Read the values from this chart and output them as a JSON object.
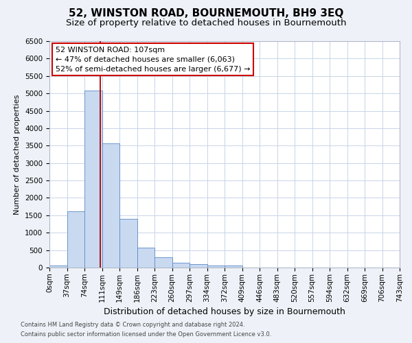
{
  "title_line1": "52, WINSTON ROAD, BOURNEMOUTH, BH9 3EQ",
  "title_line2": "Size of property relative to detached houses in Bournemouth",
  "xlabel": "Distribution of detached houses by size in Bournemouth",
  "ylabel": "Number of detached properties",
  "footnote1": "Contains HM Land Registry data © Crown copyright and database right 2024.",
  "footnote2": "Contains public sector information licensed under the Open Government Licence v3.0.",
  "bin_labels": [
    "0sqm",
    "37sqm",
    "74sqm",
    "111sqm",
    "149sqm",
    "186sqm",
    "223sqm",
    "260sqm",
    "297sqm",
    "334sqm",
    "372sqm",
    "409sqm",
    "446sqm",
    "483sqm",
    "520sqm",
    "557sqm",
    "594sqm",
    "632sqm",
    "669sqm",
    "706sqm",
    "743sqm"
  ],
  "bar_values": [
    60,
    1620,
    5080,
    3570,
    1400,
    580,
    290,
    140,
    100,
    60,
    60,
    0,
    0,
    0,
    0,
    0,
    0,
    0,
    0,
    0
  ],
  "bar_color": "#c9d9f0",
  "bar_edge_color": "#5a8ac6",
  "grid_color": "#c8d4e8",
  "vline_color": "#aa0000",
  "annotation_text": "52 WINSTON ROAD: 107sqm\n← 47% of detached houses are smaller (6,063)\n52% of semi-detached houses are larger (6,677) →",
  "annotation_box_facecolor": "#ffffff",
  "annotation_box_edgecolor": "#cc0000",
  "plot_bg": "#ffffff",
  "fig_bg": "#eef2f8",
  "ylim_max": 6500,
  "yticks": [
    0,
    500,
    1000,
    1500,
    2000,
    2500,
    3000,
    3500,
    4000,
    4500,
    5000,
    5500,
    6000,
    6500
  ],
  "title1_fontsize": 11,
  "title2_fontsize": 9.5,
  "xlabel_fontsize": 9,
  "ylabel_fontsize": 8,
  "tick_fontsize": 7.5,
  "annot_fontsize": 8,
  "footnote_fontsize": 6
}
